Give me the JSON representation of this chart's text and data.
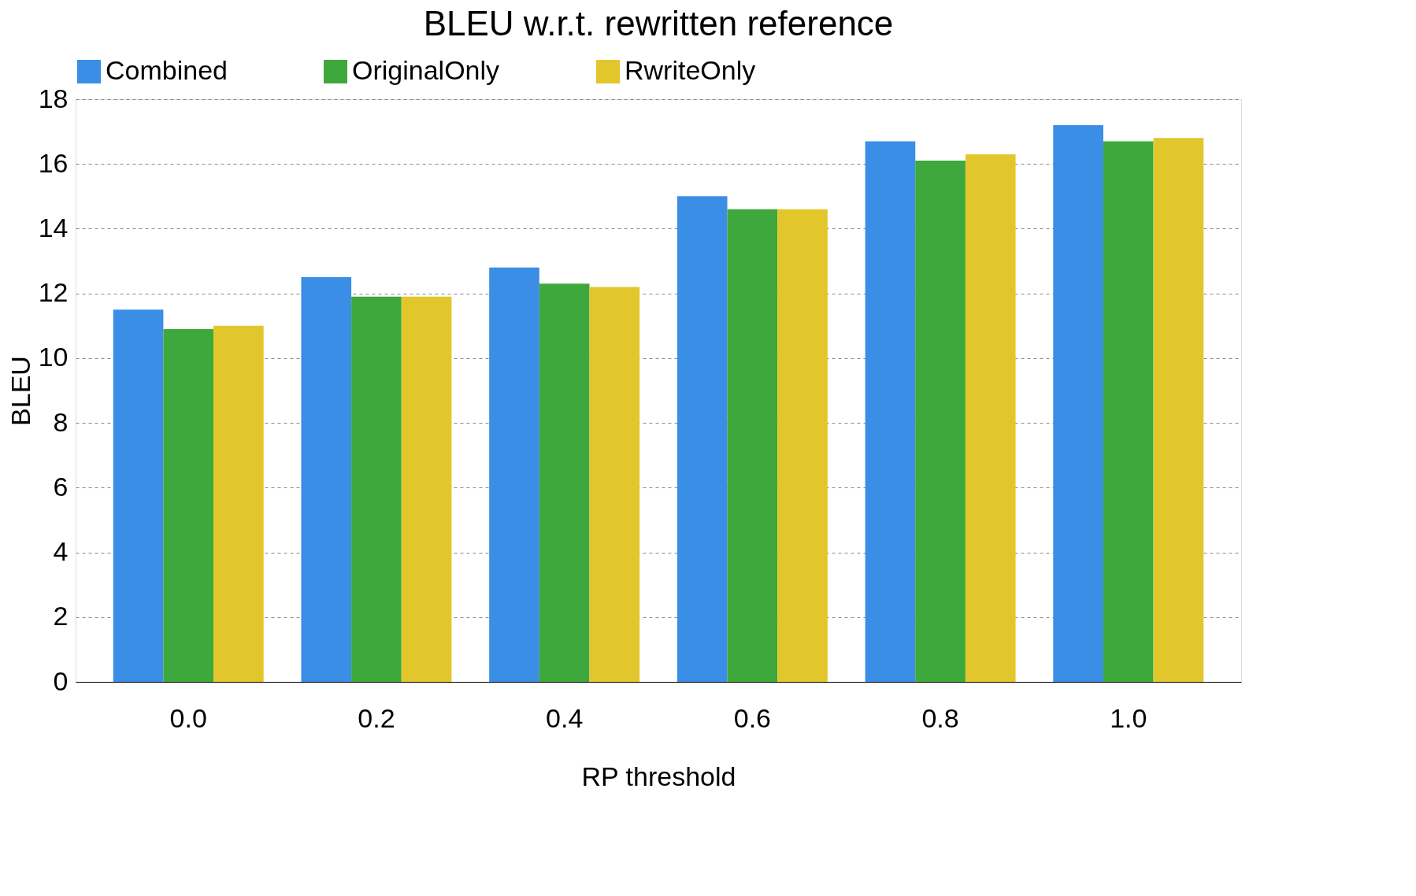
{
  "chart_data": {
    "type": "bar",
    "title": "BLEU w.r.t. rewritten reference",
    "xlabel": "RP threshold",
    "ylabel": "BLEU",
    "categories": [
      "0.0",
      "0.2",
      "0.4",
      "0.6",
      "0.8",
      "1.0"
    ],
    "series": [
      {
        "name": "Combined",
        "color": "#3a8ee6",
        "values": [
          11.5,
          12.5,
          12.8,
          15.0,
          16.7,
          17.2
        ]
      },
      {
        "name": "OriginalOnly",
        "color": "#3fa83c",
        "values": [
          10.9,
          11.9,
          12.3,
          14.6,
          16.1,
          16.7
        ]
      },
      {
        "name": "RwriteOnly",
        "color": "#e2c72c",
        "values": [
          11.0,
          11.9,
          12.2,
          14.6,
          16.3,
          16.8
        ]
      }
    ],
    "ylim": [
      0,
      18
    ],
    "yticks": [
      0,
      2,
      4,
      6,
      8,
      10,
      12,
      14,
      16,
      18
    ],
    "grid": "y",
    "legend": "top"
  }
}
